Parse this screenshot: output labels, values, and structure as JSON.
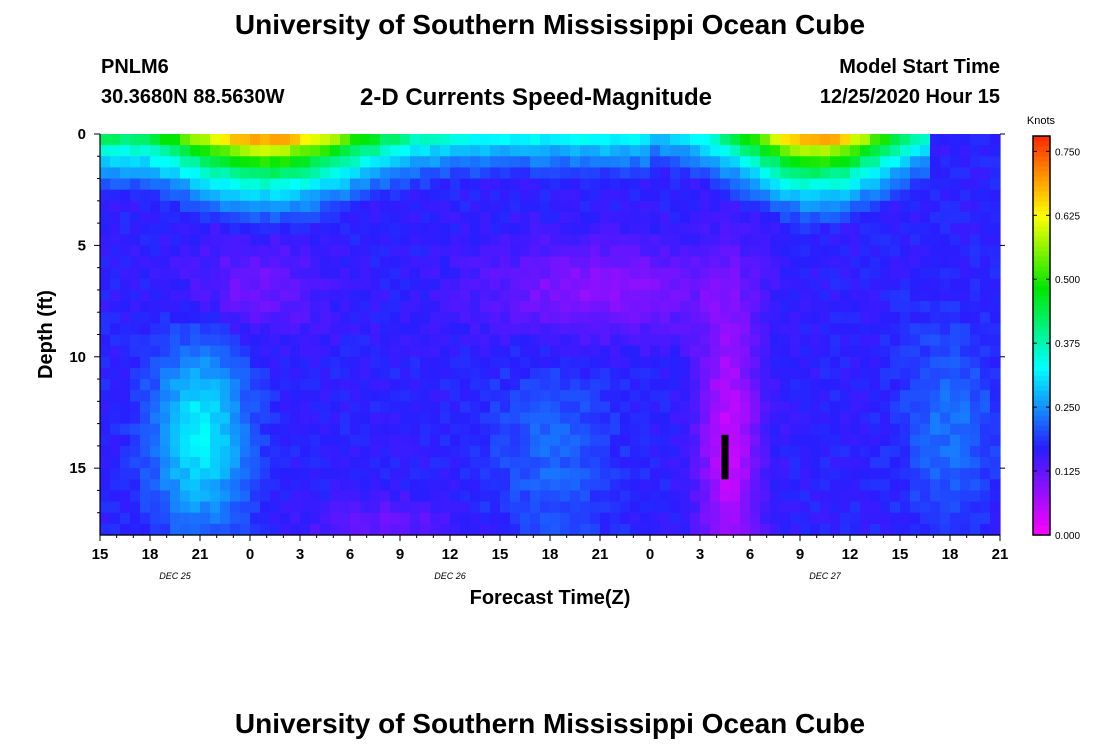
{
  "header": {
    "title": "University of Southern Mississippi Ocean Cube",
    "station_id": "PNLM6",
    "station_coords": "30.3680N 88.5630W",
    "plot_title": "2-D Currents Speed-Magnitude",
    "model_start_label": "Model Start Time",
    "model_start_value": "12/25/2020 Hour 15"
  },
  "footer": {
    "title": "University of Southern Mississippi Ocean Cube"
  },
  "chart_data": {
    "type": "heatmap",
    "title": "2-D Currents Speed-Magnitude",
    "xlabel": "Forecast Time(Z)",
    "ylabel": "Depth (ft)",
    "x_ticks": [
      "15",
      "18",
      "21",
      "0",
      "3",
      "6",
      "9",
      "12",
      "15",
      "18",
      "21",
      "0",
      "3",
      "6",
      "9",
      "12",
      "15",
      "18",
      "21"
    ],
    "date_labels": [
      {
        "label": "DEC  25",
        "hour": 4.5
      },
      {
        "label": "DEC  26",
        "hour": 21
      },
      {
        "label": "DEC  27",
        "hour": 43.5
      }
    ],
    "x_range_hours": [
      0,
      54
    ],
    "y_ticks": [
      0,
      5,
      10,
      15
    ],
    "ylim": [
      18,
      0
    ],
    "colorbar": {
      "label": "Knots",
      "range": [
        0.0,
        0.78
      ],
      "ticks": [
        "0.000",
        "0.125",
        "0.250",
        "0.375",
        "0.500",
        "0.625",
        "0.750"
      ],
      "tick_values": [
        0.0,
        0.125,
        0.25,
        0.375,
        0.5,
        0.625,
        0.75
      ]
    },
    "grid": false,
    "legend": "colorbar-right"
  }
}
